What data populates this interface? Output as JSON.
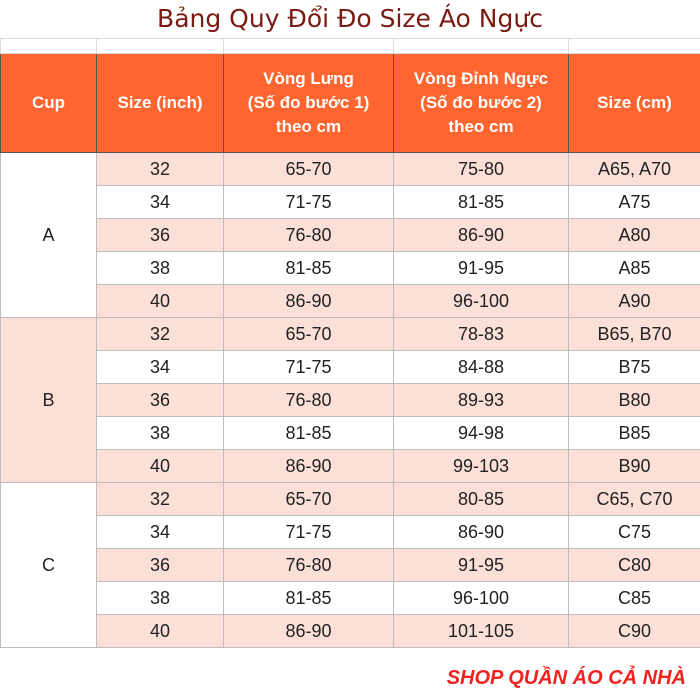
{
  "title": "Bảng Quy Đổi Đo Size Áo Ngực",
  "header": {
    "cup": "Cup",
    "size_inch": "Size (inch)",
    "underbust": [
      "Vòng Lưng",
      "(Số đo bước 1)",
      "theo cm"
    ],
    "bust": [
      "Vòng Đỉnh Ngực",
      "(Số đo bước 2)",
      "theo cm"
    ],
    "size_cm": "Size (cm)"
  },
  "groups": [
    {
      "cup": "A",
      "rows": [
        {
          "inch": "32",
          "underbust": "65-70",
          "bust": "75-80",
          "size": "A65, A70"
        },
        {
          "inch": "34",
          "underbust": "71-75",
          "bust": "81-85",
          "size": "A75"
        },
        {
          "inch": "36",
          "underbust": "76-80",
          "bust": "86-90",
          "size": "A80"
        },
        {
          "inch": "38",
          "underbust": "81-85",
          "bust": "91-95",
          "size": "A85"
        },
        {
          "inch": "40",
          "underbust": "86-90",
          "bust": "96-100",
          "size": "A90"
        }
      ]
    },
    {
      "cup": "B",
      "rows": [
        {
          "inch": "32",
          "underbust": "65-70",
          "bust": "78-83",
          "size": "B65, B70"
        },
        {
          "inch": "34",
          "underbust": "71-75",
          "bust": "84-88",
          "size": "B75"
        },
        {
          "inch": "36",
          "underbust": "76-80",
          "bust": "89-93",
          "size": "B80"
        },
        {
          "inch": "38",
          "underbust": "81-85",
          "bust": "94-98",
          "size": "B85"
        },
        {
          "inch": "40",
          "underbust": "86-90",
          "bust": "99-103",
          "size": "B90"
        }
      ]
    },
    {
      "cup": "C",
      "rows": [
        {
          "inch": "32",
          "underbust": "65-70",
          "bust": "80-85",
          "size": "C65, C70"
        },
        {
          "inch": "34",
          "underbust": "71-75",
          "bust": "86-90",
          "size": "C75"
        },
        {
          "inch": "36",
          "underbust": "76-80",
          "bust": "91-95",
          "size": "C80"
        },
        {
          "inch": "38",
          "underbust": "81-85",
          "bust": "96-100",
          "size": "C85"
        },
        {
          "inch": "40",
          "underbust": "86-90",
          "bust": "101-105",
          "size": "C90"
        }
      ]
    }
  ],
  "footer": "SHOP QUẦN ÁO CẢ NHÀ",
  "colors": {
    "header_bg": "#ff6530",
    "row_alt_bg": "#fce0d8",
    "title_color": "#7a1a12",
    "footer_color": "#f2231f"
  }
}
